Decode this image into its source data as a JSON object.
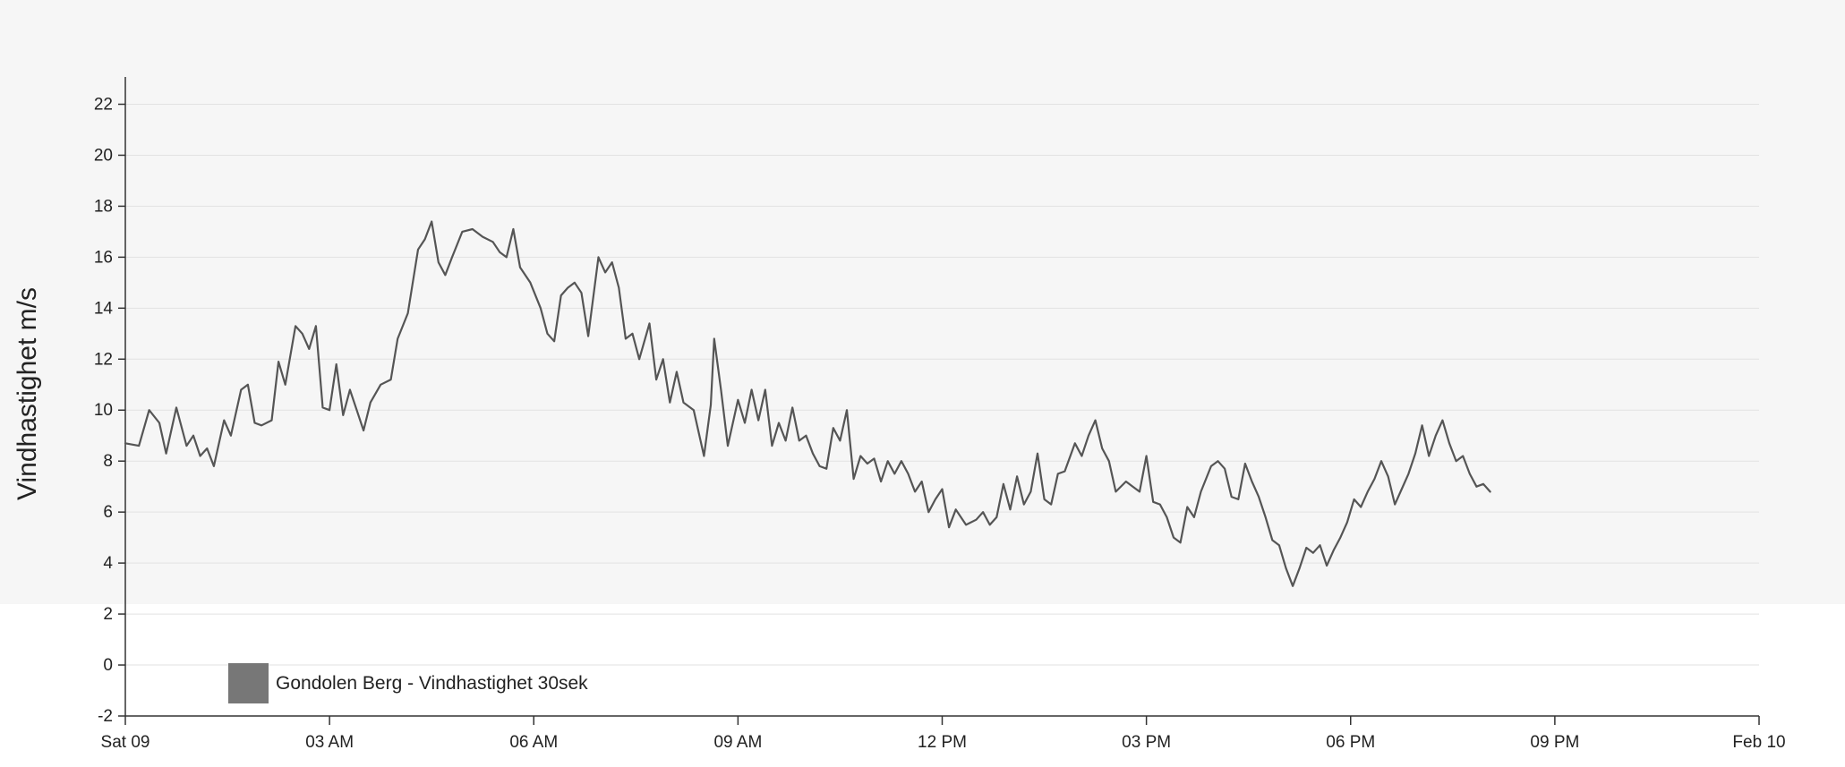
{
  "chart_data": {
    "type": "line",
    "title": "",
    "xlabel": "",
    "ylabel": "Vindhastighet m/s",
    "ylim": [
      -2,
      23
    ],
    "yticks": [
      -2,
      0,
      2,
      4,
      6,
      8,
      10,
      12,
      14,
      16,
      18,
      20,
      22
    ],
    "xlim_hours": [
      0,
      24
    ],
    "xticks": [
      {
        "hour": 0,
        "label": "Sat 09"
      },
      {
        "hour": 3,
        "label": "03 AM"
      },
      {
        "hour": 6,
        "label": "06 AM"
      },
      {
        "hour": 9,
        "label": "09 AM"
      },
      {
        "hour": 12,
        "label": "12 PM"
      },
      {
        "hour": 15,
        "label": "03 PM"
      },
      {
        "hour": 18,
        "label": "06 PM"
      },
      {
        "hour": 21,
        "label": "09 PM"
      },
      {
        "hour": 24,
        "label": "Feb 10"
      }
    ],
    "grid": true,
    "legend_position": "bottom-left",
    "series": [
      {
        "name": "Gondolen Berg - Vindhastighet 30sek",
        "color": "#555555",
        "legend_color": "#777777",
        "points": [
          [
            0.0,
            8.7
          ],
          [
            0.2,
            8.6
          ],
          [
            0.35,
            10.0
          ],
          [
            0.5,
            9.5
          ],
          [
            0.6,
            8.3
          ],
          [
            0.75,
            10.1
          ],
          [
            0.9,
            8.6
          ],
          [
            1.0,
            9.0
          ],
          [
            1.1,
            8.2
          ],
          [
            1.2,
            8.5
          ],
          [
            1.3,
            7.8
          ],
          [
            1.45,
            9.6
          ],
          [
            1.55,
            9.0
          ],
          [
            1.7,
            10.8
          ],
          [
            1.8,
            11.0
          ],
          [
            1.9,
            9.5
          ],
          [
            2.0,
            9.4
          ],
          [
            2.15,
            9.6
          ],
          [
            2.25,
            11.9
          ],
          [
            2.35,
            11.0
          ],
          [
            2.5,
            13.3
          ],
          [
            2.6,
            13.0
          ],
          [
            2.7,
            12.4
          ],
          [
            2.8,
            13.3
          ],
          [
            2.9,
            10.1
          ],
          [
            3.0,
            10.0
          ],
          [
            3.1,
            11.8
          ],
          [
            3.2,
            9.8
          ],
          [
            3.3,
            10.8
          ],
          [
            3.4,
            10.0
          ],
          [
            3.5,
            9.2
          ],
          [
            3.6,
            10.3
          ],
          [
            3.75,
            11.0
          ],
          [
            3.9,
            11.2
          ],
          [
            4.0,
            12.8
          ],
          [
            4.15,
            13.8
          ],
          [
            4.3,
            16.3
          ],
          [
            4.4,
            16.7
          ],
          [
            4.5,
            17.4
          ],
          [
            4.6,
            15.8
          ],
          [
            4.7,
            15.3
          ],
          [
            4.8,
            16.0
          ],
          [
            4.95,
            17.0
          ],
          [
            5.1,
            17.1
          ],
          [
            5.25,
            16.8
          ],
          [
            5.4,
            16.6
          ],
          [
            5.5,
            16.2
          ],
          [
            5.6,
            16.0
          ],
          [
            5.7,
            17.1
          ],
          [
            5.8,
            15.6
          ],
          [
            5.95,
            15.0
          ],
          [
            6.1,
            14.0
          ],
          [
            6.2,
            13.0
          ],
          [
            6.3,
            12.7
          ],
          [
            6.4,
            14.5
          ],
          [
            6.5,
            14.8
          ],
          [
            6.6,
            15.0
          ],
          [
            6.7,
            14.6
          ],
          [
            6.8,
            12.9
          ],
          [
            6.95,
            16.0
          ],
          [
            7.05,
            15.4
          ],
          [
            7.15,
            15.8
          ],
          [
            7.25,
            14.8
          ],
          [
            7.35,
            12.8
          ],
          [
            7.45,
            13.0
          ],
          [
            7.55,
            12.0
          ],
          [
            7.7,
            13.4
          ],
          [
            7.8,
            11.2
          ],
          [
            7.9,
            12.0
          ],
          [
            8.0,
            10.3
          ],
          [
            8.1,
            11.5
          ],
          [
            8.2,
            10.3
          ],
          [
            8.35,
            10.0
          ],
          [
            8.5,
            8.2
          ],
          [
            8.6,
            10.2
          ],
          [
            8.65,
            12.8
          ],
          [
            8.75,
            10.8
          ],
          [
            8.85,
            8.6
          ],
          [
            9.0,
            10.4
          ],
          [
            9.1,
            9.5
          ],
          [
            9.2,
            10.8
          ],
          [
            9.3,
            9.6
          ],
          [
            9.4,
            10.8
          ],
          [
            9.5,
            8.6
          ],
          [
            9.6,
            9.5
          ],
          [
            9.7,
            8.8
          ],
          [
            9.8,
            10.1
          ],
          [
            9.9,
            8.8
          ],
          [
            10.0,
            9.0
          ],
          [
            10.1,
            8.3
          ],
          [
            10.2,
            7.8
          ],
          [
            10.3,
            7.7
          ],
          [
            10.4,
            9.3
          ],
          [
            10.5,
            8.8
          ],
          [
            10.6,
            10.0
          ],
          [
            10.7,
            7.3
          ],
          [
            10.8,
            8.2
          ],
          [
            10.9,
            7.9
          ],
          [
            11.0,
            8.1
          ],
          [
            11.1,
            7.2
          ],
          [
            11.2,
            8.0
          ],
          [
            11.3,
            7.5
          ],
          [
            11.4,
            8.0
          ],
          [
            11.5,
            7.5
          ],
          [
            11.6,
            6.8
          ],
          [
            11.7,
            7.2
          ],
          [
            11.8,
            6.0
          ],
          [
            11.9,
            6.5
          ],
          [
            12.0,
            6.9
          ],
          [
            12.1,
            5.4
          ],
          [
            12.2,
            6.1
          ],
          [
            12.35,
            5.5
          ],
          [
            12.5,
            5.7
          ],
          [
            12.6,
            6.0
          ],
          [
            12.7,
            5.5
          ],
          [
            12.8,
            5.8
          ],
          [
            12.9,
            7.1
          ],
          [
            13.0,
            6.1
          ],
          [
            13.1,
            7.4
          ],
          [
            13.2,
            6.3
          ],
          [
            13.3,
            6.8
          ],
          [
            13.4,
            8.3
          ],
          [
            13.5,
            6.5
          ],
          [
            13.6,
            6.3
          ],
          [
            13.7,
            7.5
          ],
          [
            13.8,
            7.6
          ],
          [
            13.95,
            8.7
          ],
          [
            14.05,
            8.2
          ],
          [
            14.15,
            9.0
          ],
          [
            14.25,
            9.6
          ],
          [
            14.35,
            8.5
          ],
          [
            14.45,
            8.0
          ],
          [
            14.55,
            6.8
          ],
          [
            14.7,
            7.2
          ],
          [
            14.8,
            7.0
          ],
          [
            14.9,
            6.8
          ],
          [
            15.0,
            8.2
          ],
          [
            15.1,
            6.4
          ],
          [
            15.2,
            6.3
          ],
          [
            15.3,
            5.8
          ],
          [
            15.4,
            5.0
          ],
          [
            15.5,
            4.8
          ],
          [
            15.6,
            6.2
          ],
          [
            15.7,
            5.8
          ],
          [
            15.8,
            6.8
          ],
          [
            15.95,
            7.8
          ],
          [
            16.05,
            8.0
          ],
          [
            16.15,
            7.7
          ],
          [
            16.25,
            6.6
          ],
          [
            16.35,
            6.5
          ],
          [
            16.45,
            7.9
          ],
          [
            16.55,
            7.2
          ],
          [
            16.65,
            6.6
          ],
          [
            16.75,
            5.8
          ],
          [
            16.85,
            4.9
          ],
          [
            16.95,
            4.7
          ],
          [
            17.05,
            3.8
          ],
          [
            17.15,
            3.1
          ],
          [
            17.25,
            3.8
          ],
          [
            17.35,
            4.6
          ],
          [
            17.45,
            4.4
          ],
          [
            17.55,
            4.7
          ],
          [
            17.65,
            3.9
          ],
          [
            17.75,
            4.5
          ],
          [
            17.85,
            5.0
          ],
          [
            17.95,
            5.6
          ],
          [
            18.05,
            6.5
          ],
          [
            18.15,
            6.2
          ],
          [
            18.25,
            6.8
          ],
          [
            18.35,
            7.3
          ],
          [
            18.45,
            8.0
          ],
          [
            18.55,
            7.4
          ],
          [
            18.65,
            6.3
          ],
          [
            18.75,
            6.9
          ],
          [
            18.85,
            7.5
          ],
          [
            18.95,
            8.3
          ],
          [
            19.05,
            9.4
          ],
          [
            19.15,
            8.2
          ],
          [
            19.25,
            9.0
          ],
          [
            19.35,
            9.6
          ],
          [
            19.45,
            8.7
          ],
          [
            19.55,
            8.0
          ],
          [
            19.65,
            8.2
          ],
          [
            19.75,
            7.5
          ],
          [
            19.85,
            7.0
          ],
          [
            19.95,
            7.1
          ],
          [
            20.05,
            6.8
          ]
        ]
      }
    ]
  }
}
